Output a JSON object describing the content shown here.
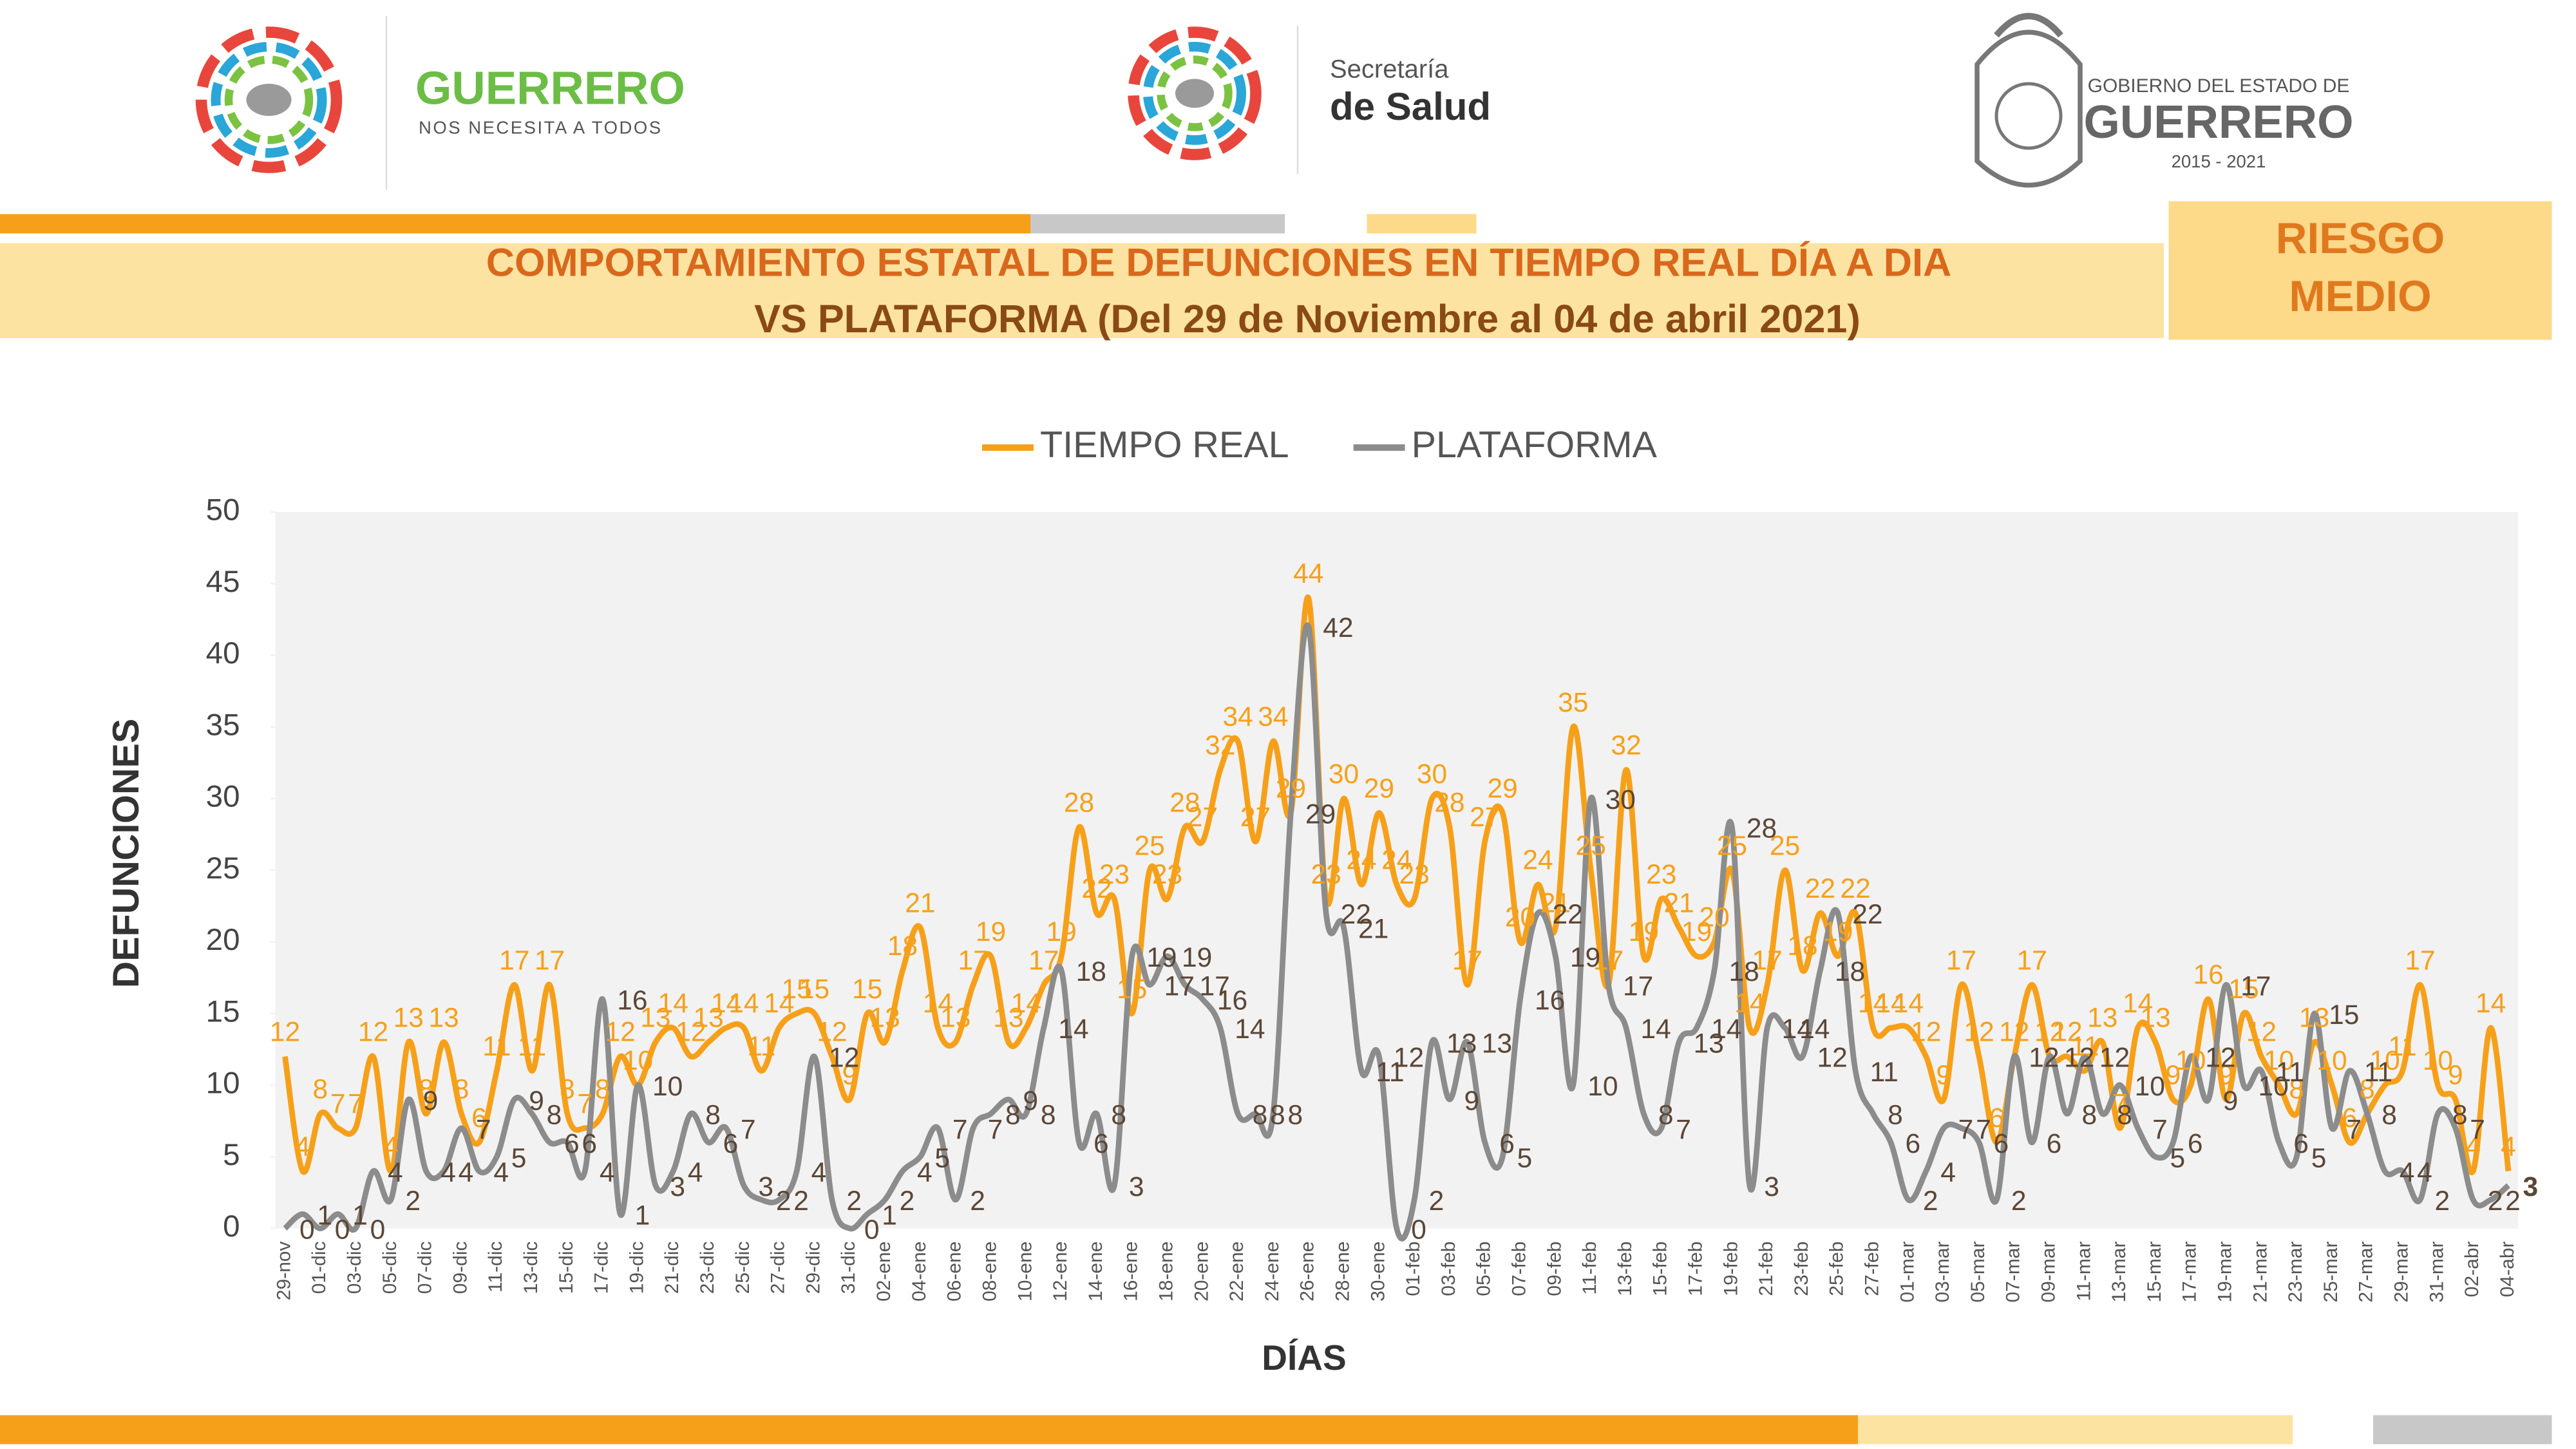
{
  "header": {
    "logo1_title": "GUERRERO",
    "logo1_subtitle": "NOS NECESITA A TODOS",
    "logo2_line1": "Secretaría",
    "logo2_line2": "de Salud",
    "logo3_line1": "GOBIERNO DEL ESTADO DE",
    "logo3_line2": "GUERRERO",
    "logo3_years": "2015 - 2021",
    "risk_line1": "RIESGO",
    "risk_line2": "MEDIO"
  },
  "chart_data": {
    "type": "line",
    "title": [
      "COMPORTAMIENTO ESTATAL DE DEFUNCIONES EN TIEMPO REAL DÍA A DIA",
      "VS PLATAFORMA   (Del 29 de Noviembre al 04 de abril 2021)"
    ],
    "x_label": "DÍAS",
    "y_label": "DEFUNCIONES",
    "categories": [
      "29-nov",
      null,
      "01-dic",
      null,
      "03-dic",
      null,
      "05-dic",
      null,
      "07-dic",
      null,
      "09-dic",
      null,
      "11-dic",
      null,
      "13-dic",
      null,
      "15-dic",
      null,
      "17-dic",
      null,
      "19-dic",
      null,
      "21-dic",
      null,
      "23-dic",
      null,
      "25-dic",
      null,
      "27-dic",
      null,
      "29-dic",
      null,
      "31-dic",
      null,
      "02-ene",
      null,
      "04-ene",
      null,
      "06-ene",
      null,
      "08-ene",
      null,
      "10-ene",
      null,
      "12-ene",
      null,
      "14-ene",
      null,
      "16-ene",
      null,
      "18-ene",
      null,
      "20-ene",
      null,
      "22-ene",
      null,
      "24-ene",
      null,
      "26-ene",
      null,
      "28-ene",
      null,
      "30-ene",
      null,
      "01-feb",
      null,
      "03-feb",
      null,
      "05-feb",
      null,
      "07-feb",
      null,
      "09-feb",
      null,
      "11-feb",
      null,
      "13-feb",
      null,
      "15-feb",
      null,
      "17-feb",
      null,
      "19-feb",
      null,
      "21-feb",
      null,
      "23-feb",
      null,
      "25-feb",
      null,
      "27-feb",
      null,
      "01-mar",
      null,
      "03-mar",
      null,
      "05-mar",
      null,
      "07-mar",
      null,
      "09-mar",
      null,
      "11-mar",
      null,
      "13-mar",
      null,
      "15-mar",
      null,
      "17-mar",
      null,
      "19-mar",
      null,
      "21-mar",
      null,
      "23-mar",
      null,
      "25-mar",
      null,
      "27-mar",
      null,
      "29-mar",
      null,
      "31-mar",
      null,
      "02-abr",
      null,
      "04-abr"
    ],
    "series": [
      {
        "name": "TIEMPO REAL",
        "color": "#f6a01a",
        "label_color": "#f6a01a",
        "values": [
          12,
          4,
          8,
          7,
          7,
          12,
          4,
          13,
          8,
          13,
          8,
          6,
          11,
          17,
          11,
          17,
          8,
          7,
          8,
          12,
          10,
          13,
          14,
          12,
          13,
          14,
          14,
          11,
          14,
          15,
          15,
          12,
          9,
          15,
          13,
          18,
          21,
          14,
          13,
          17,
          19,
          13,
          14,
          17,
          19,
          28,
          22,
          23,
          15,
          25,
          23,
          28,
          27,
          32,
          34,
          27,
          34,
          29,
          44,
          23,
          30,
          24,
          29,
          24,
          23,
          30,
          28,
          17,
          27,
          29,
          20,
          24,
          21,
          35,
          25,
          17,
          32,
          19,
          23,
          21,
          19,
          20,
          25,
          14,
          17,
          25,
          18,
          22,
          19,
          22,
          14,
          14,
          14,
          12,
          9,
          17,
          12,
          6,
          12,
          17,
          12,
          12,
          11,
          13,
          7,
          14,
          13,
          9,
          10,
          16,
          9,
          15,
          12,
          10,
          8,
          13,
          10,
          6,
          8,
          10,
          11,
          17,
          10,
          9,
          4,
          14,
          4
        ]
      },
      {
        "name": "PLATAFORMA",
        "color": "#8c8c8c",
        "label_color": "#5b4636",
        "values": [
          0,
          1,
          0,
          1,
          0,
          4,
          2,
          9,
          4,
          4,
          7,
          4,
          5,
          9,
          8,
          6,
          6,
          4,
          16,
          1,
          10,
          3,
          4,
          8,
          6,
          7,
          3,
          2,
          2,
          4,
          12,
          2,
          0,
          1,
          2,
          4,
          5,
          7,
          2,
          7,
          8,
          9,
          8,
          14,
          18,
          6,
          8,
          3,
          19,
          17,
          19,
          17,
          16,
          14,
          8,
          8,
          8,
          29,
          42,
          22,
          21,
          11,
          12,
          0,
          2,
          13,
          9,
          13,
          6,
          5,
          16,
          22,
          19,
          10,
          30,
          17,
          14,
          8,
          7,
          13,
          14,
          18,
          28,
          3,
          14,
          14,
          12,
          18,
          22,
          11,
          8,
          6,
          2,
          4,
          7,
          7,
          6,
          2,
          12,
          6,
          12,
          8,
          12,
          8,
          10,
          7,
          5,
          6,
          12,
          9,
          17,
          10,
          11,
          6,
          5,
          15,
          7,
          11,
          8,
          4,
          4,
          2,
          8,
          7,
          2,
          2,
          3
        ]
      }
    ],
    "ylim": [
      0,
      50
    ],
    "yticks": [
      0,
      5,
      10,
      15,
      20,
      25,
      30,
      35,
      40,
      45,
      50
    ],
    "grid": false,
    "legend": "top"
  }
}
